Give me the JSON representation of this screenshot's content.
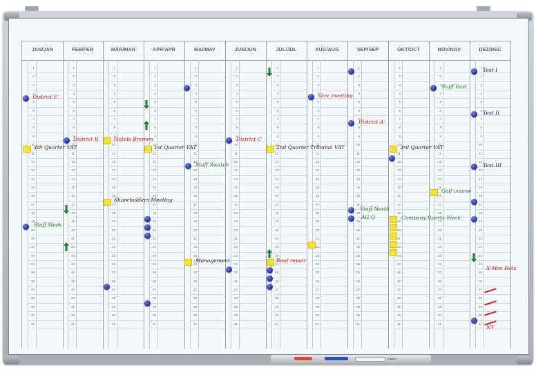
{
  "months": [
    {
      "label": "JAN/JAN"
    },
    {
      "label": "FEB/FEB"
    },
    {
      "label": "MÄR/MAR"
    },
    {
      "label": "APR/APR"
    },
    {
      "label": "MAI/MAY"
    },
    {
      "label": "JUN/JUN"
    },
    {
      "label": "JUL/JUL"
    },
    {
      "label": "AUG/AUG"
    },
    {
      "label": "SEP/SEP"
    },
    {
      "label": "OKT/OCT"
    },
    {
      "label": "NOV/NOV"
    },
    {
      "label": "DEZ/DEC"
    }
  ],
  "days": 31,
  "notes": {
    "jan_district": "District F",
    "jan_quarter": "4th Quarter VAT",
    "jan_staff": "Staff Week",
    "feb_district": "District B",
    "feb_shareholders": "Shareholders Meeting",
    "mar_hotel": "Hotels Bremen",
    "apr_quarter": "1st Quarter VAT",
    "may_staff": "Staff Swatch",
    "may_management": "Management",
    "jun_district": "District C",
    "jul_quarter": "2nd Quarter Tribunal VAT",
    "jul_roof": "Roof repair",
    "aug_gov": "Gov. meeting",
    "sep_district": "District A",
    "sep_staff": "Staff North",
    "sep_ag": "AG Q",
    "oct_quarter": "3rd Quarter VAT",
    "oct_company": "Company Sports Week",
    "nov_staff": "Staff East",
    "nov_golf": "Golf course",
    "dec_test1": "Test I",
    "dec_test2": "Test II",
    "dec_test3": "Test III",
    "dec_xmas": "X-Mas Hols",
    "dec_ny": "NY"
  },
  "tray": {
    "brand": "Franken"
  },
  "colors": {
    "dot": "#1f2e8f",
    "tag": "#f4e23a",
    "arrow": "#1d7a34",
    "red_ink": "#c01f25",
    "green_ink": "#1d7a34"
  }
}
